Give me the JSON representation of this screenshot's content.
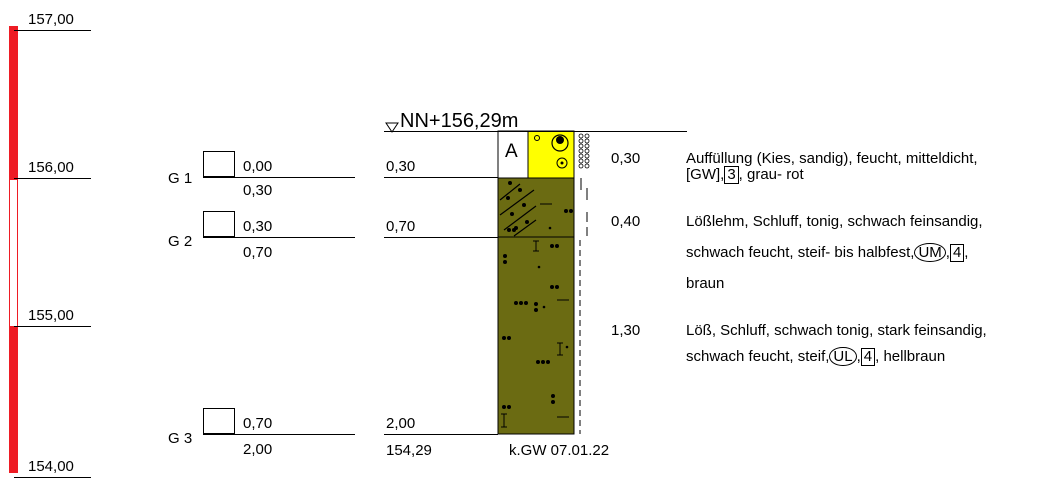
{
  "elevation_scale": {
    "labels": [
      "157,00",
      "156,00",
      "155,00",
      "154,00"
    ]
  },
  "samples": [
    {
      "name": "G 1",
      "top": "0,00",
      "bottom": "0,30"
    },
    {
      "name": "G 2",
      "top": "0,30",
      "bottom": "0,70"
    },
    {
      "name": "G 3",
      "top": "0,70",
      "bottom": "2,00"
    }
  ],
  "boring": {
    "head_label": "NN+156,29m",
    "depth_marks": [
      "0,30",
      "0,70",
      "2,00"
    ],
    "base_elevation": "154,29",
    "groundwater_note": "k.GW 07.01.22",
    "fill_marker": "A"
  },
  "layers": [
    {
      "thickness": "0,30",
      "line1": "Auffüllung (Kies, sandig), feucht, mitteldicht,",
      "line2_prefix": "[GW],",
      "line2_box": "3",
      "line2_suffix": ", grau- rot"
    },
    {
      "thickness": "0,40",
      "line1": "Lößlehm, Schluff, tonig, schwach feinsandig,",
      "line2_prefix": "schwach feucht, steif- bis halbfest,",
      "line2_circle": "UM",
      "line2_sep": ",",
      "line2_box": "4",
      "line2_suffix": ",",
      "line3": "braun"
    },
    {
      "thickness": "1,30",
      "line1": "Löß, Schluff, schwach tonig, stark feinsandig,",
      "line2_prefix": "schwach feucht, steif,",
      "line2_circle": "UL",
      "line2_sep": ",",
      "line2_box": "4",
      "line2_suffix": ", hellbraun"
    }
  ],
  "colors": {
    "scale_red": "#ee1c24",
    "fill_yellow": "#ffff00",
    "loess_olive": "#6b6b12",
    "loess_lehm_olive": "#6b6b12"
  }
}
